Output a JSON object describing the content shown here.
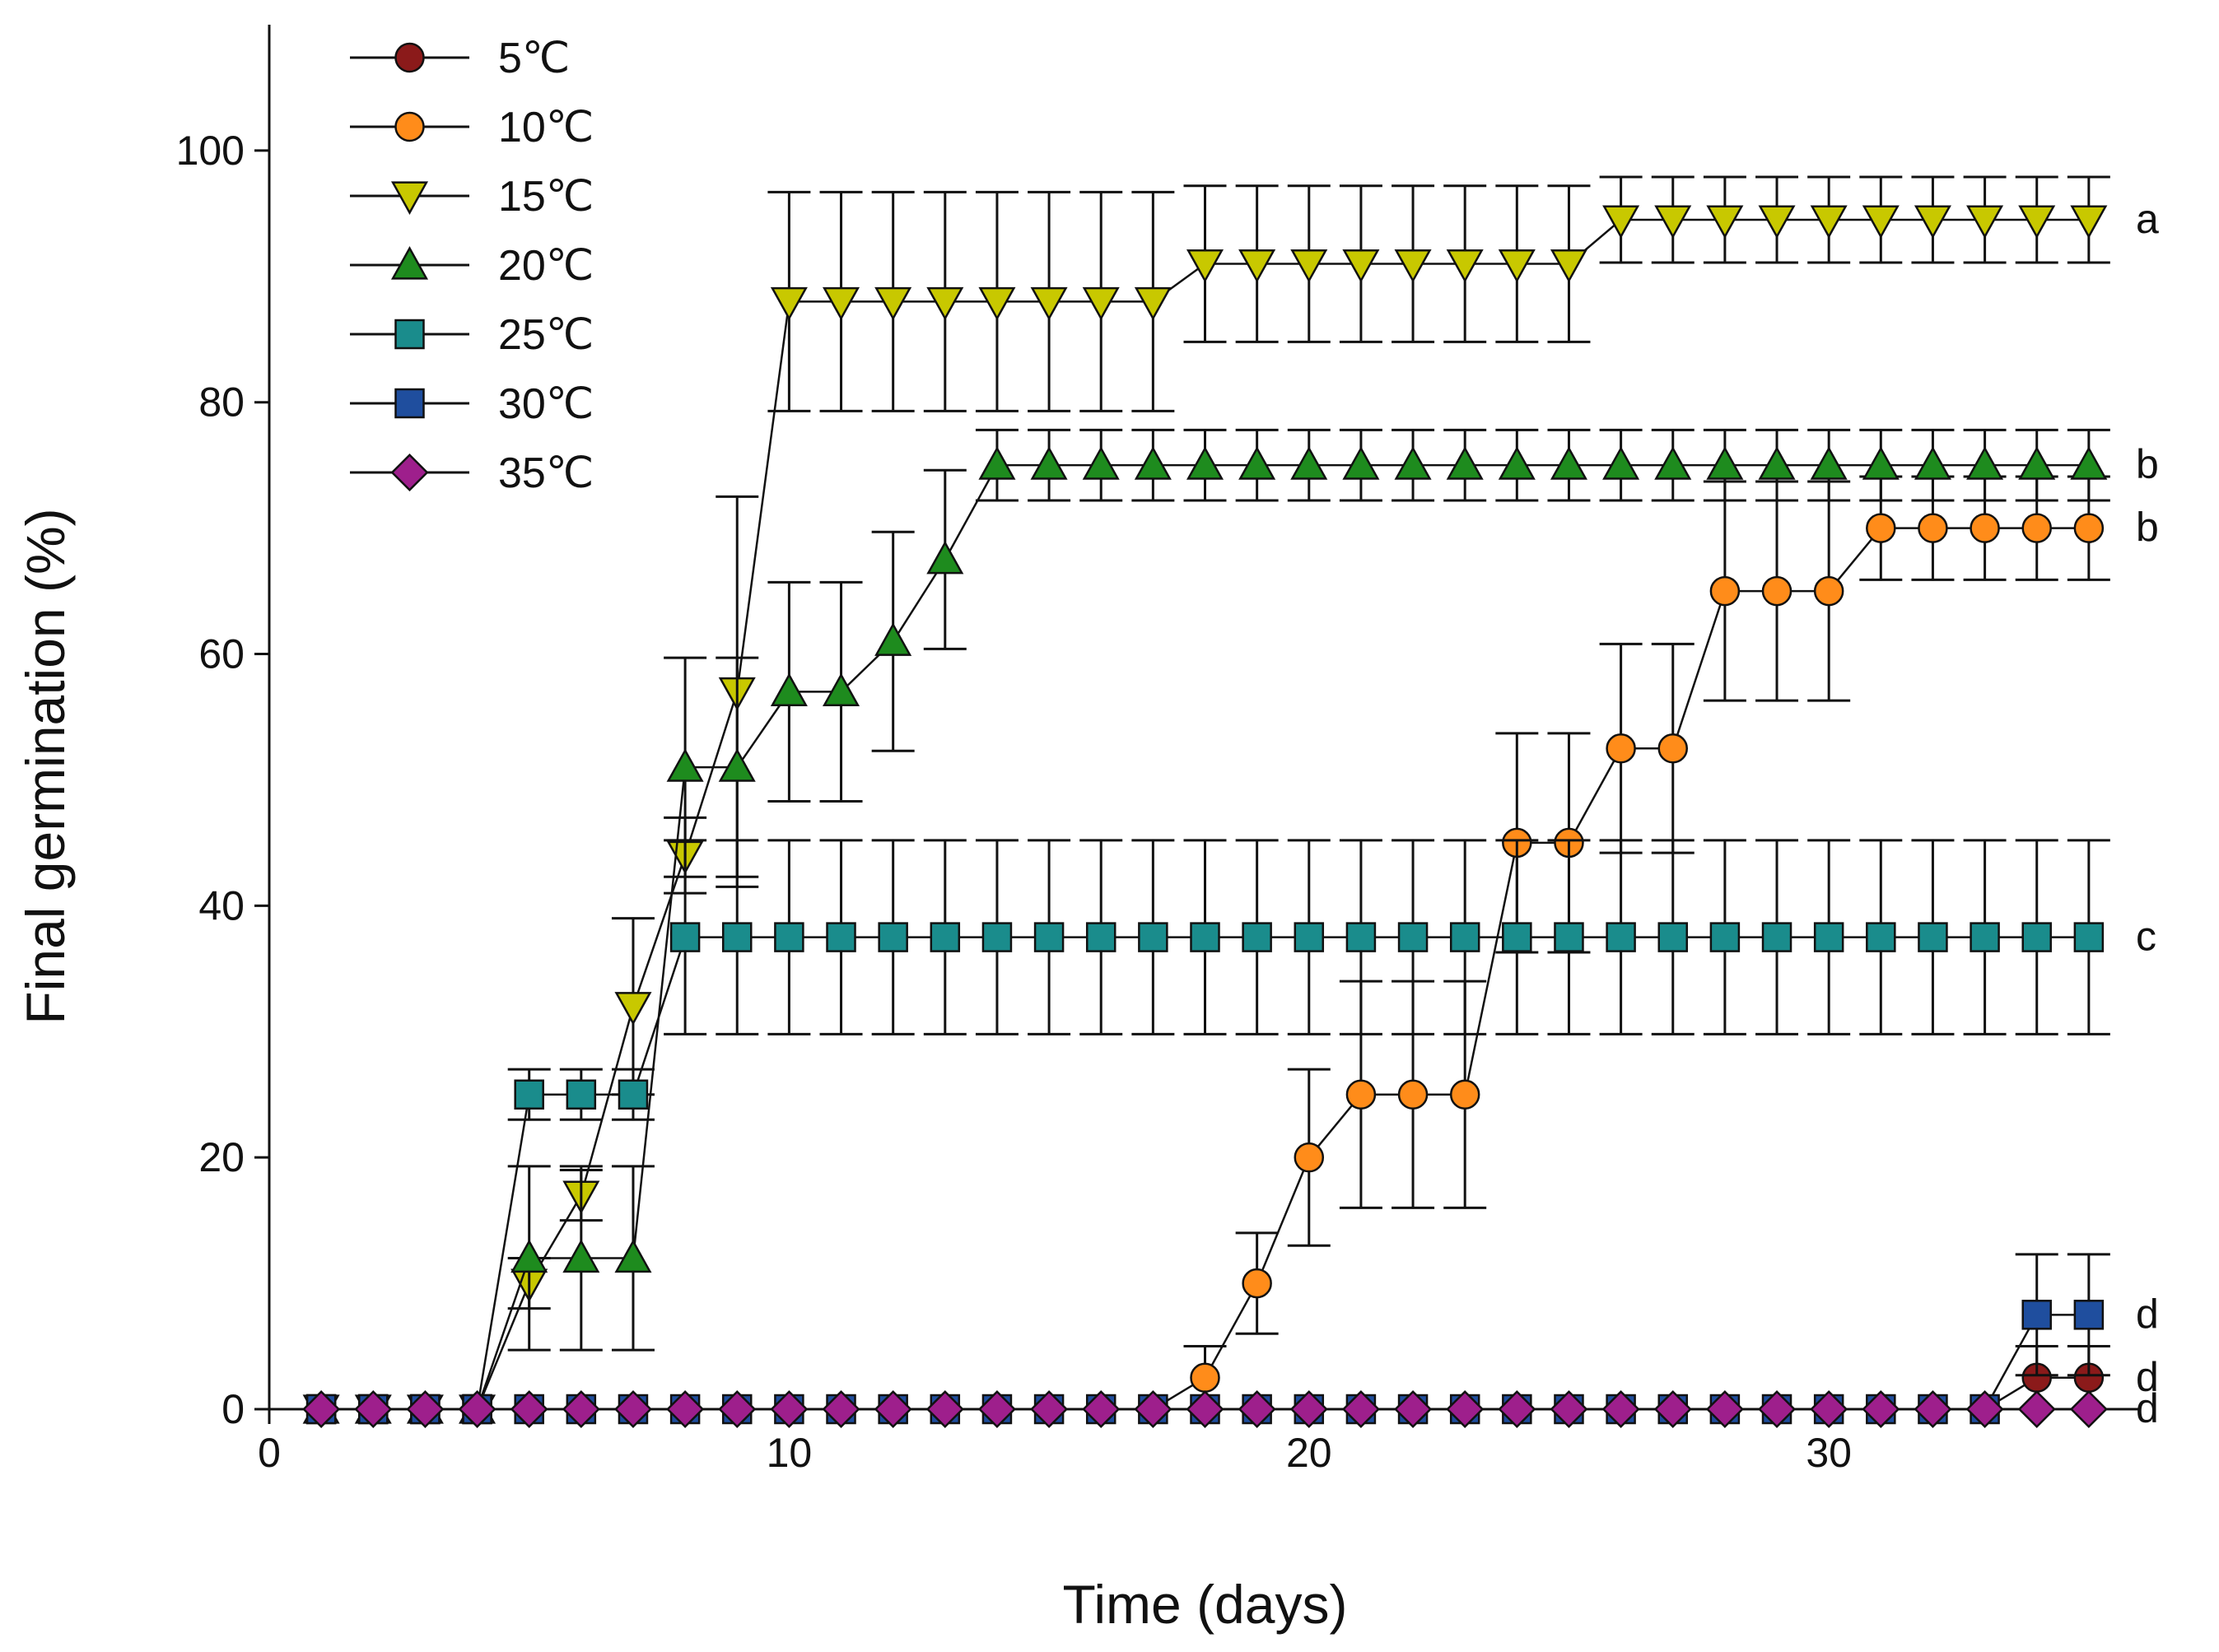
{
  "chart_data": {
    "type": "line",
    "title": "",
    "xlabel": "Time (days)",
    "ylabel": "Final germination (%)",
    "xlim": [
      0,
      36
    ],
    "ylim": [
      0,
      110
    ],
    "xticks": [
      0,
      10,
      20,
      30
    ],
    "yticks": [
      0,
      20,
      40,
      60,
      80,
      100
    ],
    "legend_position": "top-left",
    "grid": false,
    "x": [
      1,
      2,
      3,
      4,
      5,
      6,
      7,
      8,
      9,
      10,
      11,
      12,
      13,
      14,
      15,
      16,
      17,
      18,
      19,
      20,
      21,
      22,
      23,
      24,
      25,
      26,
      27,
      28,
      29,
      30,
      31,
      32,
      33,
      34,
      35
    ],
    "series": [
      {
        "name": "5℃",
        "color": "#8B1A1A",
        "marker": "circle",
        "values": [
          0,
          0,
          0,
          0,
          0,
          0,
          0,
          0,
          0,
          0,
          0,
          0,
          0,
          0,
          0,
          0,
          0,
          0,
          0,
          0,
          0,
          0,
          0,
          0,
          0,
          0,
          0,
          0,
          0,
          0,
          0,
          0,
          0,
          2.5,
          2.5
        ],
        "errors": [
          0,
          0,
          0,
          0,
          0,
          0,
          0,
          0,
          0,
          0,
          0,
          0,
          0,
          0,
          0,
          0,
          0,
          0,
          0,
          0,
          0,
          0,
          0,
          0,
          0,
          0,
          0,
          0,
          0,
          0,
          0,
          0,
          0,
          2.5,
          2.5
        ],
        "sig": "d"
      },
      {
        "name": "10℃",
        "color": "#FF8C1A",
        "marker": "circle",
        "values": [
          0,
          0,
          0,
          0,
          0,
          0,
          0,
          0,
          0,
          0,
          0,
          0,
          0,
          0,
          0,
          0,
          0,
          2.5,
          10,
          20,
          25,
          25,
          25,
          45,
          45,
          52.5,
          52.5,
          65,
          65,
          65,
          70,
          70,
          70,
          70,
          70
        ],
        "errors": [
          0,
          0,
          0,
          0,
          0,
          0,
          0,
          0,
          0,
          0,
          0,
          0,
          0,
          0,
          0,
          0,
          0,
          2.5,
          4,
          7,
          9,
          9,
          9,
          8.7,
          8.7,
          8.3,
          8.3,
          8.7,
          8.7,
          8.7,
          4.1,
          4.1,
          4.1,
          4.1,
          4.1
        ],
        "sig": "b"
      },
      {
        "name": "15℃",
        "color": "#C8C800",
        "marker": "triangle-down",
        "values": [
          0,
          0,
          0,
          0,
          10,
          17,
          32,
          44,
          57,
          88,
          88,
          88,
          88,
          88,
          88,
          88,
          88,
          91,
          91,
          91,
          91,
          91,
          91,
          91,
          91,
          94.5,
          94.5,
          94.5,
          94.5,
          94.5,
          94.5,
          94.5,
          94.5,
          94.5,
          94.5
        ],
        "errors": [
          0,
          0,
          0,
          0,
          2,
          2,
          7,
          3,
          15.5,
          8.7,
          8.7,
          8.7,
          8.7,
          8.7,
          8.7,
          8.7,
          8.7,
          6.2,
          6.2,
          6.2,
          6.2,
          6.2,
          6.2,
          6.2,
          6.2,
          3.4,
          3.4,
          3.4,
          3.4,
          3.4,
          3.4,
          3.4,
          3.4,
          3.4,
          3.4
        ],
        "sig": "a"
      },
      {
        "name": "20℃",
        "color": "#1E8B1E",
        "marker": "triangle-up",
        "values": [
          0,
          0,
          0,
          0,
          12,
          12,
          12,
          51,
          51,
          57,
          57,
          61,
          67.5,
          75,
          75,
          75,
          75,
          75,
          75,
          75,
          75,
          75,
          75,
          75,
          75,
          75,
          75,
          75,
          75,
          75,
          75,
          75,
          75,
          75,
          75
        ],
        "errors": [
          0,
          0,
          0,
          0,
          7.3,
          7.3,
          7.3,
          8.7,
          8.7,
          8.7,
          8.7,
          8.7,
          7.1,
          2.8,
          2.8,
          2.8,
          2.8,
          2.8,
          2.8,
          2.8,
          2.8,
          2.8,
          2.8,
          2.8,
          2.8,
          2.8,
          2.8,
          2.8,
          2.8,
          2.8,
          2.8,
          2.8,
          2.8,
          2.8,
          2.8
        ],
        "sig": "b"
      },
      {
        "name": "25℃",
        "color": "#1A8C8C",
        "marker": "square",
        "values": [
          0,
          0,
          0,
          0,
          25,
          25,
          25,
          37.5,
          37.5,
          37.5,
          37.5,
          37.5,
          37.5,
          37.5,
          37.5,
          37.5,
          37.5,
          37.5,
          37.5,
          37.5,
          37.5,
          37.5,
          37.5,
          37.5,
          37.5,
          37.5,
          37.5,
          37.5,
          37.5,
          37.5,
          37.5,
          37.5,
          37.5,
          37.5,
          37.5
        ],
        "errors": [
          0,
          0,
          0,
          0,
          2,
          2,
          2,
          7.7,
          7.7,
          7.7,
          7.7,
          7.7,
          7.7,
          7.7,
          7.7,
          7.7,
          7.7,
          7.7,
          7.7,
          7.7,
          7.7,
          7.7,
          7.7,
          7.7,
          7.7,
          7.7,
          7.7,
          7.7,
          7.7,
          7.7,
          7.7,
          7.7,
          7.7,
          7.7,
          7.7
        ],
        "sig": "c"
      },
      {
        "name": "30℃",
        "color": "#1F4E9E",
        "marker": "square",
        "values": [
          0,
          0,
          0,
          0,
          0,
          0,
          0,
          0,
          0,
          0,
          0,
          0,
          0,
          0,
          0,
          0,
          0,
          0,
          0,
          0,
          0,
          0,
          0,
          0,
          0,
          0,
          0,
          0,
          0,
          0,
          0,
          0,
          0,
          7.5,
          7.5
        ],
        "errors": [
          0,
          0,
          0,
          0,
          0,
          0,
          0,
          0,
          0,
          0,
          0,
          0,
          0,
          0,
          0,
          0,
          0,
          0,
          0,
          0,
          0,
          0,
          0,
          0,
          0,
          0,
          0,
          0,
          0,
          0,
          0,
          0,
          0,
          4.8,
          4.8
        ],
        "sig": "d"
      },
      {
        "name": "35℃",
        "color": "#9E1F8C",
        "marker": "diamond",
        "values": [
          0,
          0,
          0,
          0,
          0,
          0,
          0,
          0,
          0,
          0,
          0,
          0,
          0,
          0,
          0,
          0,
          0,
          0,
          0,
          0,
          0,
          0,
          0,
          0,
          0,
          0,
          0,
          0,
          0,
          0,
          0,
          0,
          0,
          0,
          0
        ],
        "errors": [
          0,
          0,
          0,
          0,
          0,
          0,
          0,
          0,
          0,
          0,
          0,
          0,
          0,
          0,
          0,
          0,
          0,
          0,
          0,
          0,
          0,
          0,
          0,
          0,
          0,
          0,
          0,
          0,
          0,
          0,
          0,
          0,
          0,
          0,
          0
        ],
        "sig": "d"
      }
    ]
  }
}
